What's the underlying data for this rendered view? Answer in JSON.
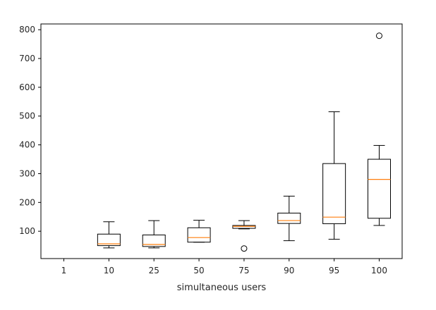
{
  "chart_data": {
    "type": "boxplot",
    "xlabel": "simultaneous users",
    "ylabel": "",
    "title": "",
    "ylim": [
      5,
      820
    ],
    "yticks": [
      100,
      200,
      300,
      400,
      500,
      600,
      700,
      800
    ],
    "categories": [
      "1",
      "10",
      "25",
      "50",
      "75",
      "90",
      "95",
      "100"
    ],
    "boxes": [
      {
        "category": "1",
        "min": null,
        "q1": null,
        "median": null,
        "q3": null,
        "max": null,
        "outliers": []
      },
      {
        "category": "10",
        "min": 42,
        "q1": 50,
        "median": 56,
        "q3": 90,
        "max": 133,
        "outliers": []
      },
      {
        "category": "25",
        "min": 42,
        "q1": 47,
        "median": 54,
        "q3": 87,
        "max": 137,
        "outliers": []
      },
      {
        "category": "50",
        "min": 62,
        "q1": 62,
        "median": 78,
        "q3": 112,
        "max": 138,
        "outliers": []
      },
      {
        "category": "75",
        "min": 108,
        "q1": 110,
        "median": 117,
        "q3": 120,
        "max": 137,
        "outliers": [
          40
        ]
      },
      {
        "category": "90",
        "min": 67,
        "q1": 127,
        "median": 137,
        "q3": 163,
        "max": 222,
        "outliers": []
      },
      {
        "category": "95",
        "min": 72,
        "q1": 126,
        "median": 149,
        "q3": 335,
        "max": 515,
        "outliers": []
      },
      {
        "category": "100",
        "min": 120,
        "q1": 145,
        "median": 280,
        "q3": 350,
        "max": 398,
        "outliers": [
          779
        ]
      }
    ],
    "colors": {
      "box": "#000000",
      "median": "#ff7f0e",
      "background": "#ffffff"
    },
    "grid": false
  }
}
